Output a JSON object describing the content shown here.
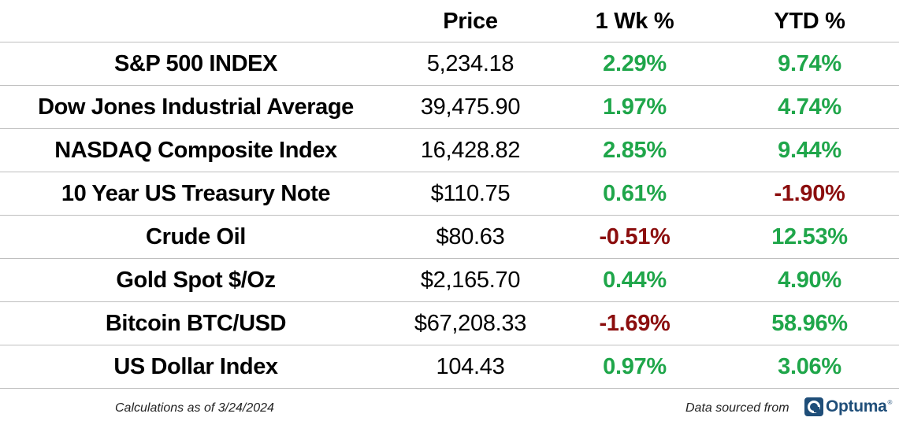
{
  "header": {
    "name": "",
    "price": "Price",
    "week": "1 Wk %",
    "ytd": "YTD %"
  },
  "rows": [
    {
      "name": "S&P 500 INDEX",
      "price": "5,234.18",
      "week": "2.29%",
      "ytd": "9.74%"
    },
    {
      "name": "Dow Jones Industrial Average",
      "price": "39,475.90",
      "week": "1.97%",
      "ytd": "4.74%"
    },
    {
      "name": "NASDAQ Composite Index",
      "price": "16,428.82",
      "week": "2.85%",
      "ytd": "9.44%"
    },
    {
      "name": "10 Year US Treasury Note",
      "price": "$110.75",
      "week": "0.61%",
      "ytd": "-1.90%"
    },
    {
      "name": "Crude Oil",
      "price": "$80.63",
      "week": "-0.51%",
      "ytd": "12.53%"
    },
    {
      "name": "Gold Spot $/Oz",
      "price": "$2,165.70",
      "week": "0.44%",
      "ytd": "4.90%"
    },
    {
      "name": "Bitcoin BTC/USD",
      "price": "$67,208.33",
      "week": "-1.69%",
      "ytd": "58.96%"
    },
    {
      "name": "US Dollar Index",
      "price": "104.43",
      "week": "0.97%",
      "ytd": "3.06%"
    }
  ],
  "colors": {
    "positive": "#1fa64a",
    "negative": "#8b0d0d",
    "text": "#000000",
    "brand": "#1f4e79"
  },
  "footer": {
    "calc_note": "Calculations as of 3/24/2024",
    "source_note": "Data sourced from",
    "logo_text": "Optuma",
    "logo_icon": "optuma-logo-icon"
  }
}
